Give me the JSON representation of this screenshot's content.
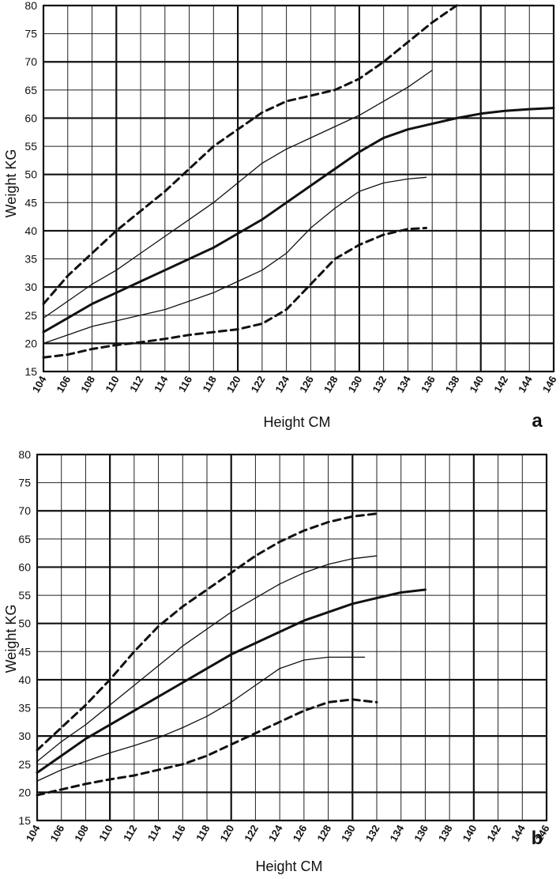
{
  "chart_data": [
    {
      "type": "line",
      "panel_label": "a",
      "xlabel": "Height CM",
      "ylabel": "Weight KG",
      "xlim": [
        104,
        146
      ],
      "ylim": [
        15,
        80
      ],
      "x_ticks": [
        104,
        106,
        108,
        110,
        112,
        114,
        116,
        118,
        120,
        122,
        124,
        126,
        128,
        130,
        132,
        134,
        136,
        138,
        140,
        142,
        144,
        146
      ],
      "y_ticks": [
        15,
        20,
        25,
        30,
        35,
        40,
        45,
        50,
        55,
        60,
        65,
        70,
        75,
        80
      ],
      "grid": true,
      "series": [
        {
          "style": "dashed",
          "weight": "bold",
          "points": [
            [
              104,
              27
            ],
            [
              106,
              32
            ],
            [
              108,
              36
            ],
            [
              110,
              40
            ],
            [
              112,
              43.5
            ],
            [
              114,
              47
            ],
            [
              116,
              51
            ],
            [
              118,
              55
            ],
            [
              120,
              58
            ],
            [
              122,
              61
            ],
            [
              124,
              63
            ],
            [
              126,
              64
            ],
            [
              128,
              65
            ],
            [
              130,
              67
            ],
            [
              132,
              70
            ],
            [
              134,
              73.5
            ],
            [
              136,
              77
            ],
            [
              138,
              80
            ]
          ]
        },
        {
          "style": "solid",
          "weight": "thin",
          "points": [
            [
              104,
              24.5
            ],
            [
              106,
              27.5
            ],
            [
              108,
              30.5
            ],
            [
              110,
              33
            ],
            [
              112,
              36
            ],
            [
              114,
              39
            ],
            [
              116,
              42
            ],
            [
              118,
              45
            ],
            [
              120,
              48.5
            ],
            [
              122,
              52
            ],
            [
              124,
              54.5
            ],
            [
              126,
              56.5
            ],
            [
              128,
              58.5
            ],
            [
              130,
              60.5
            ],
            [
              132,
              63
            ],
            [
              134,
              65.5
            ],
            [
              136,
              68.5
            ]
          ]
        },
        {
          "style": "solid",
          "weight": "bold",
          "points": [
            [
              104,
              22
            ],
            [
              106,
              24.5
            ],
            [
              108,
              27
            ],
            [
              110,
              29
            ],
            [
              112,
              31
            ],
            [
              114,
              33
            ],
            [
              116,
              35
            ],
            [
              118,
              37
            ],
            [
              120,
              39.5
            ],
            [
              122,
              42
            ],
            [
              124,
              45
            ],
            [
              126,
              48
            ],
            [
              128,
              51
            ],
            [
              130,
              54
            ],
            [
              132,
              56.5
            ],
            [
              134,
              58
            ],
            [
              136,
              59
            ],
            [
              138,
              60
            ],
            [
              140,
              60.8
            ],
            [
              142,
              61.3
            ],
            [
              144,
              61.6
            ],
            [
              146,
              61.8
            ]
          ]
        },
        {
          "style": "solid",
          "weight": "thin",
          "points": [
            [
              104,
              20
            ],
            [
              106,
              21.5
            ],
            [
              108,
              23
            ],
            [
              110,
              24
            ],
            [
              112,
              25
            ],
            [
              114,
              26
            ],
            [
              116,
              27.5
            ],
            [
              118,
              29
            ],
            [
              120,
              31
            ],
            [
              122,
              33
            ],
            [
              124,
              36
            ],
            [
              126,
              40.5
            ],
            [
              128,
              44
            ],
            [
              130,
              47
            ],
            [
              132,
              48.5
            ],
            [
              134,
              49.2
            ],
            [
              135.5,
              49.5
            ]
          ]
        },
        {
          "style": "dashed",
          "weight": "bold",
          "points": [
            [
              104,
              17.5
            ],
            [
              106,
              18
            ],
            [
              108,
              19
            ],
            [
              110,
              19.7
            ],
            [
              112,
              20.2
            ],
            [
              114,
              20.8
            ],
            [
              116,
              21.5
            ],
            [
              118,
              22
            ],
            [
              120,
              22.5
            ],
            [
              122,
              23.5
            ],
            [
              124,
              26
            ],
            [
              126,
              30.5
            ],
            [
              128,
              35
            ],
            [
              130,
              37.5
            ],
            [
              132,
              39.3
            ],
            [
              134,
              40.3
            ],
            [
              135.5,
              40.5
            ]
          ]
        }
      ]
    },
    {
      "type": "line",
      "panel_label": "b",
      "xlabel": "Height CM",
      "ylabel": "Weight KG",
      "xlim": [
        104,
        146
      ],
      "ylim": [
        15,
        80
      ],
      "x_ticks": [
        104,
        106,
        108,
        110,
        112,
        114,
        116,
        118,
        120,
        122,
        124,
        126,
        128,
        130,
        132,
        134,
        136,
        138,
        140,
        142,
        144,
        146
      ],
      "y_ticks": [
        15,
        20,
        25,
        30,
        35,
        40,
        45,
        50,
        55,
        60,
        65,
        70,
        75,
        80
      ],
      "grid": true,
      "series": [
        {
          "style": "dashed",
          "weight": "bold",
          "points": [
            [
              104,
              27.5
            ],
            [
              106,
              31.5
            ],
            [
              108,
              35.5
            ],
            [
              110,
              40
            ],
            [
              112,
              45
            ],
            [
              114,
              49.5
            ],
            [
              116,
              53
            ],
            [
              118,
              56
            ],
            [
              120,
              59
            ],
            [
              122,
              62
            ],
            [
              124,
              64.5
            ],
            [
              126,
              66.5
            ],
            [
              128,
              68
            ],
            [
              130,
              69
            ],
            [
              132,
              69.5
            ]
          ]
        },
        {
          "style": "solid",
          "weight": "thin",
          "points": [
            [
              104,
              25.5
            ],
            [
              106,
              29
            ],
            [
              108,
              32
            ],
            [
              110,
              35.5
            ],
            [
              112,
              39
            ],
            [
              114,
              42.5
            ],
            [
              116,
              46
            ],
            [
              118,
              49
            ],
            [
              120,
              52
            ],
            [
              122,
              54.5
            ],
            [
              124,
              57
            ],
            [
              126,
              59
            ],
            [
              128,
              60.5
            ],
            [
              130,
              61.5
            ],
            [
              132,
              62
            ]
          ]
        },
        {
          "style": "solid",
          "weight": "bold",
          "points": [
            [
              104,
              23.5
            ],
            [
              106,
              26.5
            ],
            [
              108,
              29.5
            ],
            [
              110,
              32
            ],
            [
              112,
              34.5
            ],
            [
              114,
              37
            ],
            [
              116,
              39.5
            ],
            [
              118,
              42
            ],
            [
              120,
              44.5
            ],
            [
              122,
              46.5
            ],
            [
              124,
              48.5
            ],
            [
              126,
              50.5
            ],
            [
              128,
              52
            ],
            [
              130,
              53.5
            ],
            [
              132,
              54.5
            ],
            [
              134,
              55.5
            ],
            [
              136,
              56
            ]
          ]
        },
        {
          "style": "solid",
          "weight": "thin",
          "points": [
            [
              104,
              22
            ],
            [
              106,
              24
            ],
            [
              108,
              25.5
            ],
            [
              110,
              27
            ],
            [
              112,
              28.3
            ],
            [
              114,
              29.7
            ],
            [
              116,
              31.5
            ],
            [
              118,
              33.5
            ],
            [
              120,
              36
            ],
            [
              122,
              39
            ],
            [
              124,
              42
            ],
            [
              126,
              43.5
            ],
            [
              128,
              44
            ],
            [
              130,
              44
            ],
            [
              131,
              44
            ]
          ]
        },
        {
          "style": "dashed",
          "weight": "bold",
          "points": [
            [
              104,
              19.5
            ],
            [
              106,
              20.5
            ],
            [
              108,
              21.5
            ],
            [
              110,
              22.3
            ],
            [
              112,
              23
            ],
            [
              114,
              24
            ],
            [
              116,
              25
            ],
            [
              118,
              26.5
            ],
            [
              120,
              28.5
            ],
            [
              122,
              30.5
            ],
            [
              124,
              32.5
            ],
            [
              126,
              34.5
            ],
            [
              128,
              36
            ],
            [
              130,
              36.5
            ],
            [
              132,
              36
            ]
          ]
        }
      ]
    }
  ]
}
